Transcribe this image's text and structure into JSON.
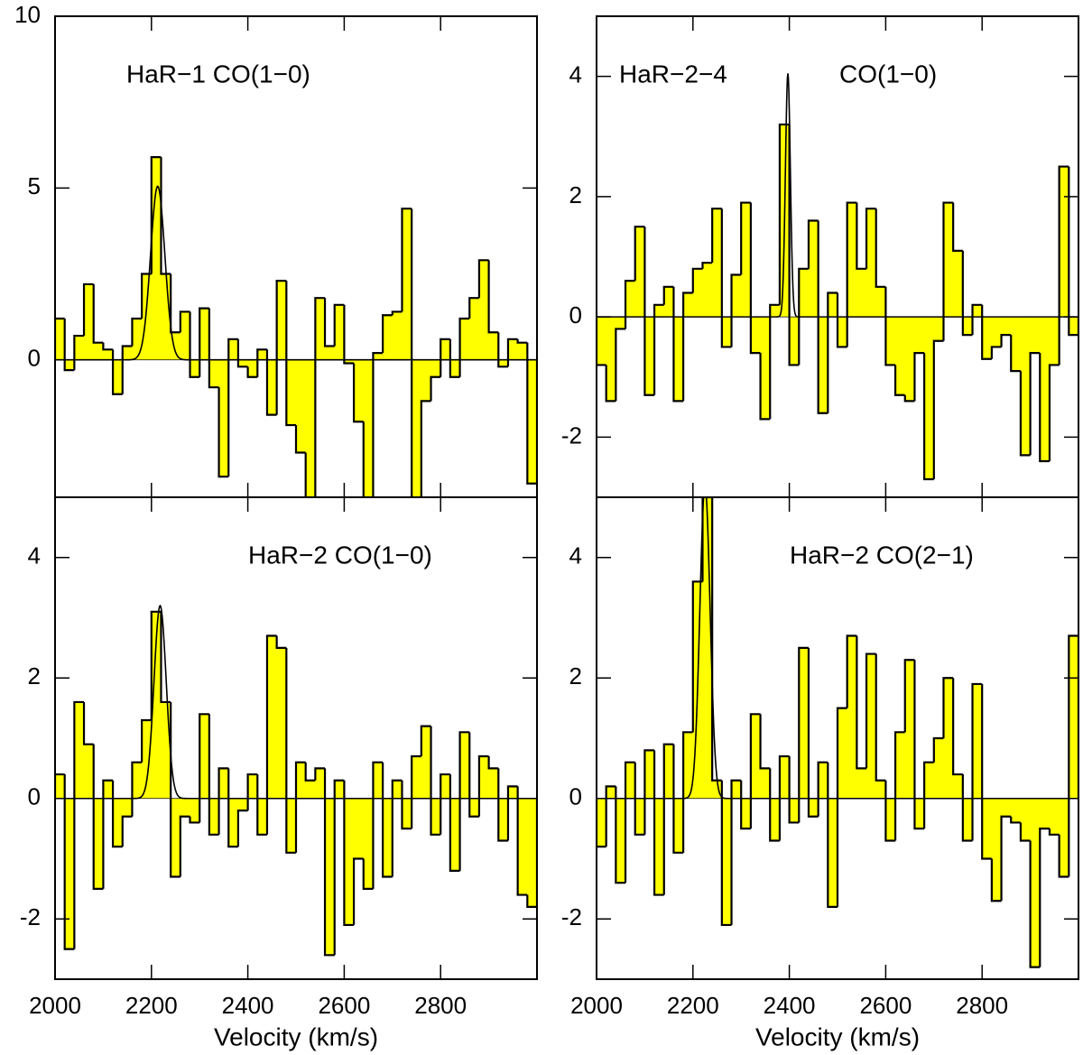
{
  "chart_data": [
    {
      "type": "histogram",
      "annotations": [
        "HaR−1 CO(1−0)"
      ],
      "bins": [
        2000,
        2020,
        2040,
        2060,
        2080,
        2100,
        2120,
        2140,
        2160,
        2180,
        2200,
        2220,
        2240,
        2260,
        2280,
        2300,
        2320,
        2340,
        2360,
        2380,
        2400,
        2420,
        2440,
        2460,
        2480,
        2500,
        2520,
        2540,
        2560,
        2580,
        2600,
        2620,
        2640,
        2660,
        2680,
        2700,
        2720,
        2740,
        2760,
        2780,
        2800,
        2820,
        2840,
        2860,
        2880,
        2900,
        2920,
        2940,
        2960,
        2980,
        3000
      ],
      "values": [
        1.2,
        -0.3,
        0.7,
        2.2,
        0.5,
        0.3,
        -1.0,
        0.4,
        1.2,
        2.5,
        5.9,
        2.5,
        0.8,
        1.4,
        -0.5,
        1.5,
        -0.8,
        -3.4,
        0.6,
        -0.2,
        -0.5,
        0.3,
        -1.6,
        2.3,
        -1.9,
        -2.7,
        -4.5,
        1.8,
        0.4,
        1.6,
        -0.1,
        -1.8,
        -4.5,
        0.2,
        1.3,
        1.4,
        4.4,
        -4.5,
        -1.2,
        -0.5,
        0.6,
        -0.5,
        1.2,
        1.8,
        2.9,
        0.8,
        -0.2,
        0.6,
        0.5,
        -3.6
      ],
      "fit": {
        "amplitude": 5.05,
        "center": 2213,
        "fwhm": 35
      },
      "fill_color": "#ffff00",
      "line_color": "#000000",
      "xlim": [
        2000,
        3000
      ],
      "xticks": [
        2000,
        2200,
        2400,
        2600,
        2800
      ],
      "ylim": [
        -4,
        10
      ],
      "yticks": [
        0,
        5,
        10
      ]
    },
    {
      "type": "histogram",
      "annotations": [
        "HaR−2−4",
        "CO(1−0)"
      ],
      "bins": [
        2000,
        2020,
        2040,
        2060,
        2080,
        2100,
        2120,
        2140,
        2160,
        2180,
        2200,
        2220,
        2240,
        2260,
        2280,
        2300,
        2320,
        2340,
        2360,
        2380,
        2400,
        2420,
        2440,
        2460,
        2480,
        2500,
        2520,
        2540,
        2560,
        2580,
        2600,
        2620,
        2640,
        2660,
        2680,
        2700,
        2720,
        2740,
        2760,
        2780,
        2800,
        2820,
        2840,
        2860,
        2880,
        2900,
        2920,
        2940,
        2960,
        2980,
        3000
      ],
      "values": [
        -0.8,
        -1.4,
        -0.2,
        0.6,
        1.5,
        -1.3,
        0.2,
        0.5,
        -1.4,
        0.4,
        0.8,
        0.9,
        1.8,
        -0.5,
        0.7,
        1.9,
        -0.6,
        -1.7,
        0.2,
        3.2,
        -0.8,
        0.8,
        1.6,
        -1.6,
        0.4,
        -0.5,
        1.9,
        0.8,
        1.8,
        0.5,
        -0.8,
        -1.3,
        -1.4,
        -0.6,
        -2.7,
        -0.4,
        1.9,
        1.1,
        -0.3,
        0.2,
        -0.7,
        -0.5,
        -0.3,
        -0.9,
        -2.3,
        -0.6,
        -2.4,
        -0.8,
        2.5,
        -0.3
      ],
      "fit": {
        "amplitude": 4.05,
        "center": 2397,
        "fwhm": 12
      },
      "fill_color": "#ffff00",
      "line_color": "#000000",
      "xlim": [
        2000,
        3000
      ],
      "xticks": [
        2000,
        2200,
        2400,
        2600,
        2800
      ],
      "ylim": [
        -3,
        5
      ],
      "yticks": [
        -2,
        0,
        2,
        4
      ]
    },
    {
      "type": "histogram",
      "annotations": [
        "HaR−2 CO(1−0)"
      ],
      "xlabel": "Velocity (km/s)",
      "bins": [
        2000,
        2020,
        2040,
        2060,
        2080,
        2100,
        2120,
        2140,
        2160,
        2180,
        2200,
        2220,
        2240,
        2260,
        2280,
        2300,
        2320,
        2340,
        2360,
        2380,
        2400,
        2420,
        2440,
        2460,
        2480,
        2500,
        2520,
        2540,
        2560,
        2580,
        2600,
        2620,
        2640,
        2660,
        2680,
        2700,
        2720,
        2740,
        2760,
        2780,
        2800,
        2820,
        2840,
        2860,
        2880,
        2900,
        2920,
        2940,
        2960,
        2980,
        3000
      ],
      "values": [
        0.4,
        -2.5,
        1.6,
        0.9,
        -1.5,
        0.3,
        -0.8,
        -0.3,
        0.6,
        1.3,
        3.1,
        1.6,
        -1.3,
        -0.3,
        -0.4,
        1.4,
        -0.6,
        0.5,
        -0.8,
        -0.2,
        0.4,
        -0.6,
        2.7,
        2.5,
        -0.9,
        0.6,
        0.3,
        0.5,
        -2.6,
        0.3,
        -2.1,
        -1.0,
        -1.5,
        0.6,
        -1.3,
        0.3,
        -0.5,
        0.7,
        1.2,
        -0.6,
        0.4,
        -1.2,
        1.1,
        -0.3,
        0.7,
        0.5,
        -0.7,
        0.2,
        -1.6,
        -1.8
      ],
      "fit": {
        "amplitude": 3.2,
        "center": 2218,
        "fwhm": 30
      },
      "fill_color": "#ffff00",
      "line_color": "#000000",
      "xlim": [
        2000,
        3000
      ],
      "xticks": [
        2000,
        2200,
        2400,
        2600,
        2800
      ],
      "ylim": [
        -3,
        5
      ],
      "yticks": [
        -2,
        0,
        2,
        4
      ]
    },
    {
      "type": "histogram",
      "annotations": [
        "HaR−2 CO(2−1)"
      ],
      "xlabel": "Velocity (km/s)",
      "bins": [
        2000,
        2020,
        2040,
        2060,
        2080,
        2100,
        2120,
        2140,
        2160,
        2180,
        2200,
        2220,
        2240,
        2260,
        2280,
        2300,
        2320,
        2340,
        2360,
        2380,
        2400,
        2420,
        2440,
        2460,
        2480,
        2500,
        2520,
        2540,
        2560,
        2580,
        2600,
        2620,
        2640,
        2660,
        2680,
        2700,
        2720,
        2740,
        2760,
        2780,
        2800,
        2820,
        2840,
        2860,
        2880,
        2900,
        2920,
        2940,
        2960,
        2980,
        3000
      ],
      "values": [
        -0.8,
        0.2,
        -1.4,
        0.6,
        -0.6,
        0.8,
        -1.6,
        0.9,
        -0.9,
        1.1,
        3.6,
        5.0,
        0.3,
        -2.1,
        0.3,
        -0.5,
        1.4,
        0.5,
        -0.7,
        0.7,
        -0.4,
        2.5,
        -0.3,
        0.6,
        -1.8,
        1.5,
        2.7,
        0.5,
        2.4,
        0.3,
        -0.7,
        1.1,
        2.3,
        -0.5,
        0.6,
        1.0,
        2.0,
        0.4,
        -0.7,
        1.9,
        -1.0,
        -1.7,
        -0.3,
        -0.4,
        -0.7,
        -2.8,
        -0.5,
        -0.6,
        -1.3,
        2.7
      ],
      "fit": {
        "amplitude": 5.2,
        "center": 2225,
        "fwhm": 25
      },
      "fill_color": "#ffff00",
      "line_color": "#000000",
      "xlim": [
        2000,
        3000
      ],
      "xticks": [
        2000,
        2200,
        2400,
        2600,
        2800
      ],
      "ylim": [
        -3,
        5
      ],
      "yticks": [
        -2,
        0,
        2,
        4
      ]
    }
  ]
}
